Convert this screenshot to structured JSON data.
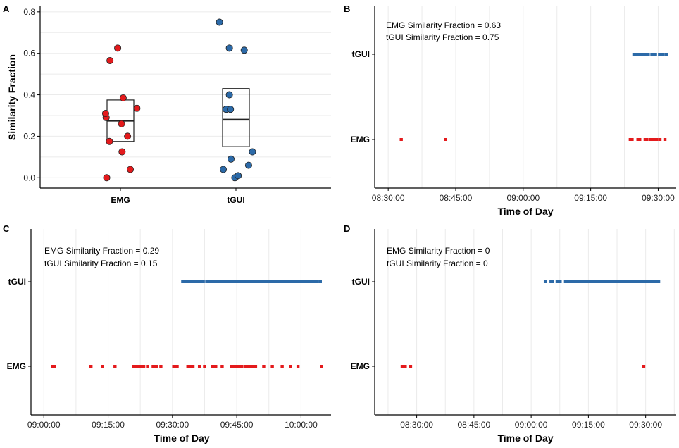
{
  "colors": {
    "EMG": "#e41a1c",
    "tGUI": "#2c6aa8",
    "grid": "#ebebeb",
    "box": "#222222"
  },
  "chart_data": [
    {
      "panel": "A",
      "type": "scatter",
      "ylabel": "Similarity Fraction",
      "xlabel": "",
      "categories": [
        "EMG",
        "tGUI"
      ],
      "ylim": [
        -0.05,
        0.83
      ],
      "yticks": [
        0.0,
        0.2,
        0.4,
        0.6,
        0.8
      ],
      "ytick_labels": [
        "0.0",
        "0.2",
        "0.4",
        "0.6",
        "0.8"
      ],
      "series": [
        {
          "name": "EMG",
          "points": [
            {
              "dx": -0.25,
              "y": 0.0
            },
            {
              "dx": 0.18,
              "y": 0.04
            },
            {
              "dx": 0.03,
              "y": 0.125
            },
            {
              "dx": -0.2,
              "y": 0.175
            },
            {
              "dx": 0.13,
              "y": 0.2
            },
            {
              "dx": -0.26,
              "y": 0.29
            },
            {
              "dx": -0.27,
              "y": 0.31
            },
            {
              "dx": 0.3,
              "y": 0.335
            },
            {
              "dx": 0.02,
              "y": 0.26
            },
            {
              "dx": 0.05,
              "y": 0.385
            },
            {
              "dx": -0.19,
              "y": 0.565
            },
            {
              "dx": -0.05,
              "y": 0.625
            }
          ],
          "box": {
            "q1": 0.175,
            "median": 0.275,
            "q3": 0.375
          }
        },
        {
          "name": "tGUI",
          "points": [
            {
              "dx": -0.02,
              "y": 0.0
            },
            {
              "dx": 0.04,
              "y": 0.01
            },
            {
              "dx": -0.23,
              "y": 0.04
            },
            {
              "dx": 0.23,
              "y": 0.06
            },
            {
              "dx": -0.09,
              "y": 0.09
            },
            {
              "dx": 0.3,
              "y": 0.125
            },
            {
              "dx": -0.18,
              "y": 0.33
            },
            {
              "dx": -0.1,
              "y": 0.33
            },
            {
              "dx": -0.12,
              "y": 0.4
            },
            {
              "dx": -0.12,
              "y": 0.625
            },
            {
              "dx": 0.15,
              "y": 0.615
            },
            {
              "dx": -0.3,
              "y": 0.75
            }
          ],
          "box": {
            "q1": 0.15,
            "median": 0.28,
            "q3": 0.43
          }
        }
      ]
    },
    {
      "panel": "B",
      "type": "scatter",
      "xlabel": "Time of Day",
      "categories": [
        "EMG",
        "tGUI"
      ],
      "xlim_min": [
        507,
        574
      ],
      "xticks_min": [
        510,
        525,
        540,
        555,
        570
      ],
      "xtick_labels": [
        "08:30:00",
        "08:45:00",
        "09:00:00",
        "09:15:00",
        "09:30:00"
      ],
      "annotations": [
        "EMG Similarity Fraction = 0.63",
        "tGUI Similarity Fraction = 0.75"
      ],
      "series": [
        {
          "name": "tGUI",
          "times_min": [
            564.6,
            565.0,
            565.4,
            565.8,
            566.2,
            566.6,
            567.0,
            567.4,
            567.8,
            568.6,
            569.0,
            569.4,
            570.3,
            570.7,
            571.1,
            571.8
          ]
        },
        {
          "name": "EMG",
          "times_min": [
            512.9,
            522.7,
            563.8,
            564.2,
            565.5,
            565.9,
            567.1,
            567.5,
            568.3,
            568.7,
            569.3,
            569.7,
            570.4,
            571.5
          ]
        }
      ]
    },
    {
      "panel": "C",
      "type": "scatter",
      "xlabel": "Time of Day",
      "categories": [
        "EMG",
        "tGUI"
      ],
      "xlim_min": [
        537,
        607
      ],
      "xticks_min": [
        540,
        555,
        570,
        585,
        600
      ],
      "xtick_labels": [
        "09:00:00",
        "09:15:00",
        "09:30:00",
        "09:45:00",
        "10:00:00"
      ],
      "annotations": [
        "EMG Similarity Fraction = 0.29",
        "tGUI Similarity Fraction = 0.15"
      ],
      "series": [
        {
          "name": "tGUI",
          "times_min": [
            572.4,
            572.7,
            573.0,
            573.3,
            573.6,
            573.9,
            574.2,
            574.5,
            574.8,
            575.1,
            575.4,
            575.7,
            576.0,
            576.3,
            576.6,
            576.9,
            577.2,
            578.0,
            578.3,
            578.6,
            578.9,
            579.2,
            579.5,
            579.8,
            580.1,
            580.4,
            580.7,
            581.0,
            581.3,
            581.6,
            581.9,
            582.2,
            582.5,
            582.8,
            583.1,
            583.4,
            583.7,
            584.0,
            584.3,
            584.6,
            584.9,
            585.2,
            585.5,
            585.8,
            586.1,
            586.4,
            586.7,
            587.0,
            587.3,
            587.6,
            587.9,
            588.5,
            588.8,
            589.1,
            589.4,
            589.7,
            590.0,
            590.3,
            590.6,
            590.9,
            591.2,
            591.5,
            591.8,
            592.1,
            592.4,
            592.7,
            593.0,
            593.3,
            593.6,
            593.9,
            594.2,
            594.5,
            594.8,
            595.1,
            595.4,
            595.7,
            596.0,
            596.3,
            596.6,
            596.9,
            597.2,
            597.5,
            597.8,
            598.1,
            598.4,
            598.7,
            599.0,
            599.3,
            599.6,
            599.9,
            600.2,
            600.5,
            600.8,
            601.1,
            601.4,
            601.7,
            602.0,
            602.3,
            602.6,
            602.9,
            603.2,
            603.5,
            603.8,
            604.5
          ]
        },
        {
          "name": "EMG",
          "times_min": [
            542.0,
            542.4,
            551.0,
            553.7,
            556.6,
            560.9,
            561.3,
            561.7,
            562.1,
            562.5,
            563.3,
            564.2,
            565.5,
            565.9,
            566.3,
            567.3,
            570.3,
            570.7,
            571.1,
            573.6,
            574.0,
            574.4,
            574.8,
            576.3,
            577.5,
            579.3,
            579.7,
            580.1,
            581.6,
            583.7,
            584.1,
            584.5,
            584.9,
            585.3,
            585.8,
            586.2,
            587.0,
            587.4,
            588.0,
            588.4,
            588.8,
            589.4,
            591.3,
            593.3,
            595.6,
            597.6,
            599.3,
            604.8
          ]
        }
      ]
    },
    {
      "panel": "D",
      "type": "scatter",
      "xlabel": "Time of Day",
      "categories": [
        "EMG",
        "tGUI"
      ],
      "xlim_min": [
        499,
        578
      ],
      "xticks_min": [
        510,
        525,
        540,
        555,
        570
      ],
      "xtick_labels": [
        "08:30:00",
        "08:45:00",
        "09:00:00",
        "09:15:00",
        "09:30:00"
      ],
      "annotations": [
        "EMG Similarity Fraction = 0",
        "tGUI Similarity Fraction = 0"
      ],
      "series": [
        {
          "name": "tGUI",
          "times_min": [
            543.7,
            545.2,
            545.6,
            546.8,
            547.2,
            547.6,
            549.0,
            549.4,
            549.8,
            550.2,
            550.6,
            551.0,
            551.4,
            551.8,
            552.2,
            552.6,
            553.0,
            553.4,
            553.8,
            554.2,
            554.6,
            555.0,
            555.4,
            555.8,
            556.2,
            556.6,
            557.0,
            557.4,
            557.8,
            558.2,
            558.6,
            559.0,
            559.4,
            559.8,
            560.2,
            560.6,
            561.0,
            561.4,
            561.8,
            562.2,
            562.6,
            563.0,
            563.4,
            563.8,
            564.2,
            564.6,
            565.0,
            565.4,
            565.8,
            566.2,
            566.6,
            567.0,
            567.4,
            567.8,
            568.2,
            568.6,
            569.0,
            569.4,
            569.8,
            570.2,
            570.6,
            571.0,
            571.4,
            571.8,
            572.2,
            572.6,
            573.0,
            573.4
          ]
        },
        {
          "name": "EMG",
          "times_min": [
            506.2,
            506.6,
            507.0,
            508.4,
            569.5
          ]
        }
      ]
    }
  ]
}
